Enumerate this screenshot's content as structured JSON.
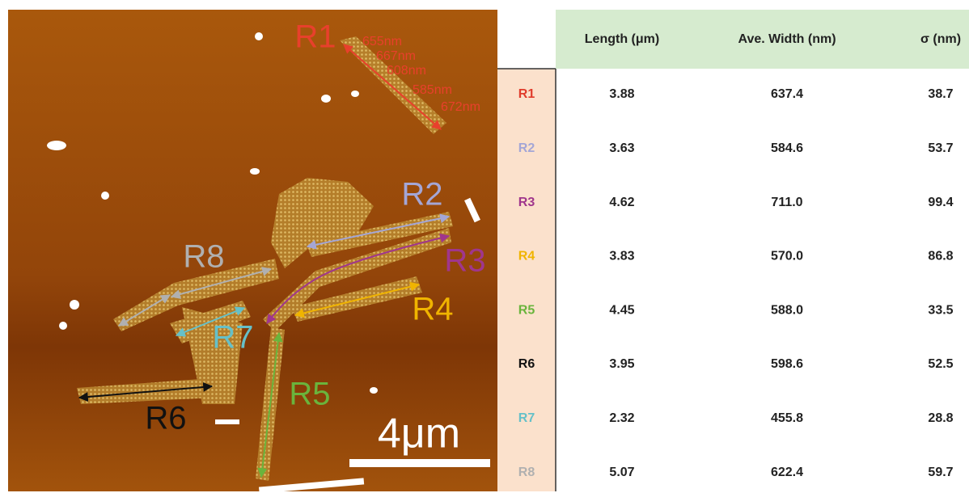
{
  "image": {
    "labels": [
      "R1",
      "R2",
      "R3",
      "R4",
      "R5",
      "R6",
      "R7",
      "R8"
    ],
    "measurements": [
      "655nm",
      "667nm",
      "608nm",
      "585nm",
      "672nm"
    ],
    "scale_bar": "4μm"
  },
  "table": {
    "header": [
      "Length (μm)",
      "Ave. Width (nm)",
      "σ (nm)"
    ],
    "rows": [
      [
        "R1",
        "3.88",
        "637.4",
        "38.7"
      ],
      [
        "R2",
        "3.63",
        "584.6",
        "53.7"
      ],
      [
        "R3",
        "4.62",
        "711.0",
        "99.4"
      ],
      [
        "R4",
        "3.83",
        "570.0",
        "86.8"
      ],
      [
        "R5",
        "4.45",
        "588.0",
        "33.5"
      ],
      [
        "R6",
        "3.95",
        "598.6",
        "52.5"
      ],
      [
        "R7",
        "2.32",
        "455.8",
        "28.8"
      ],
      [
        "R8",
        "5.07",
        "622.4",
        "59.7"
      ]
    ]
  }
}
